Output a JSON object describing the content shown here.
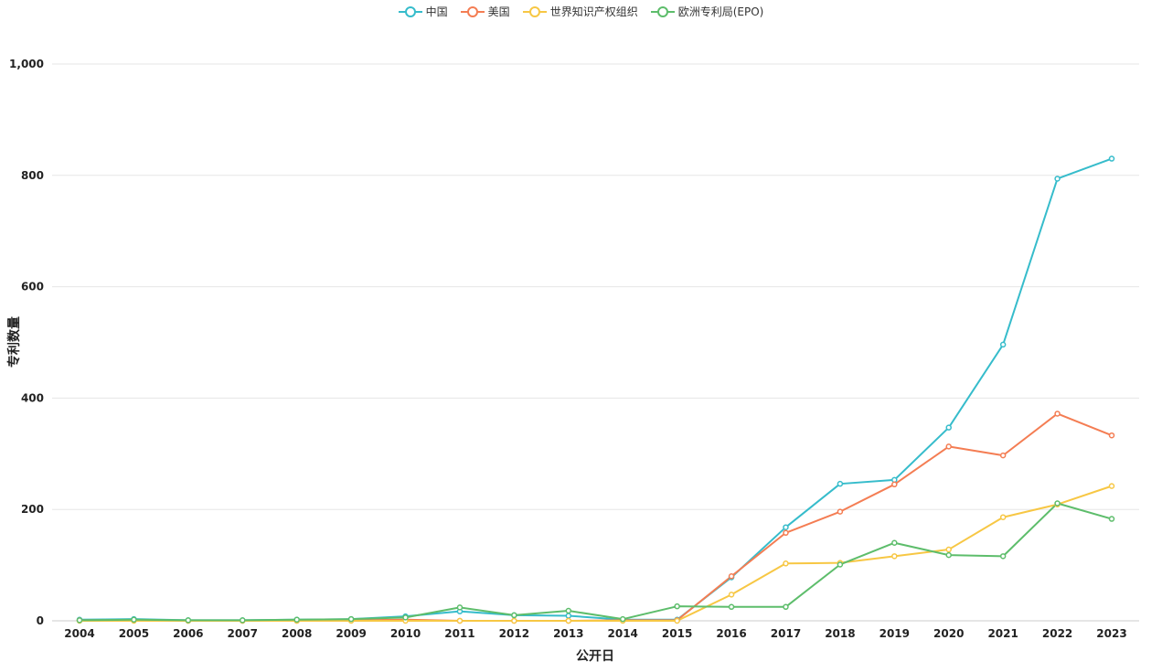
{
  "legend": {
    "items": [
      {
        "label": "中国",
        "color": "#36bccb"
      },
      {
        "label": "美国",
        "color": "#f47d53"
      },
      {
        "label": "世界知识产权组织",
        "color": "#f7c744"
      },
      {
        "label": "欧洲专利局(EPO)",
        "color": "#5dbd6b"
      }
    ]
  },
  "chart_data": {
    "type": "line",
    "title": "",
    "xlabel": "公开日",
    "ylabel": "专利数量",
    "ylim": [
      0,
      1000
    ],
    "yticks": [
      "0",
      "200",
      "400",
      "600",
      "800",
      "1,000"
    ],
    "ytick_values": [
      0,
      200,
      400,
      600,
      800,
      1000
    ],
    "grid": true,
    "legend_position": "top-center",
    "x": [
      "2004",
      "2005",
      "2006",
      "2007",
      "2008",
      "2009",
      "2010",
      "2011",
      "2012",
      "2013",
      "2014",
      "2015",
      "2016",
      "2017",
      "2018",
      "2019",
      "2020",
      "2021",
      "2022",
      "2023"
    ],
    "series": [
      {
        "name": "中国",
        "color": "#36bccb",
        "values": [
          2,
          3,
          1,
          1,
          2,
          3,
          8,
          17,
          10,
          9,
          2,
          2,
          78,
          168,
          246,
          253,
          347,
          496,
          794,
          830
        ]
      },
      {
        "name": "美国",
        "color": "#f47d53",
        "values": [
          1,
          1,
          0,
          0,
          0,
          1,
          2,
          0,
          0,
          0,
          1,
          1,
          80,
          158,
          196,
          245,
          313,
          297,
          372,
          333
        ]
      },
      {
        "name": "世界知识产权组织",
        "color": "#f7c744",
        "values": [
          0,
          0,
          0,
          0,
          0,
          0,
          0,
          0,
          0,
          0,
          0,
          0,
          47,
          103,
          104,
          116,
          128,
          186,
          209,
          242
        ]
      },
      {
        "name": "欧洲专利局(EPO)",
        "color": "#5dbd6b",
        "values": [
          1,
          2,
          1,
          1,
          2,
          3,
          6,
          24,
          10,
          18,
          3,
          26,
          25,
          25,
          101,
          140,
          118,
          116,
          211,
          183
        ]
      }
    ]
  }
}
